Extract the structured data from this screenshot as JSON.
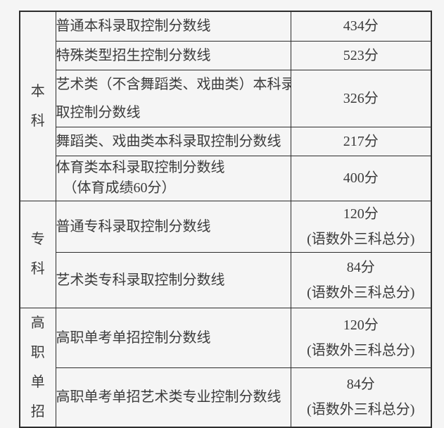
{
  "page": {
    "background": "#f5f5f5",
    "border_color": "#2d2d2d",
    "text_color": "#3b3b3b"
  },
  "table": {
    "description": "录取控制分数线表",
    "sections": [
      {
        "label": "本科",
        "chars": [
          "本",
          "科"
        ],
        "rows": [
          {
            "item": [
              "普通本科录取控制分数线"
            ],
            "value": [
              "434分"
            ]
          },
          {
            "item": [
              "特殊类型招生控制分数线"
            ],
            "value": [
              "523分"
            ]
          },
          {
            "item": [
              "艺术类（不含舞蹈类、戏曲类）本科录",
              "取控制分数线"
            ],
            "value": [
              "326分"
            ]
          },
          {
            "item": [
              "舞蹈类、戏曲类本科录取控制分数线"
            ],
            "value": [
              "217分"
            ]
          },
          {
            "item": [
              "体育类本科录取控制分数线",
              "（体育成绩60分）"
            ],
            "value": [
              "400分"
            ]
          }
        ]
      },
      {
        "label": "专科",
        "chars": [
          "专",
          "科"
        ],
        "rows": [
          {
            "item": [
              "普通专科录取控制分数线"
            ],
            "value": [
              "120分",
              "(语数外三科总分)"
            ]
          },
          {
            "item": [
              "艺术类专科录取控制分数线"
            ],
            "value": [
              "84分",
              "(语数外三科总分)"
            ]
          }
        ]
      },
      {
        "label": "高职单招",
        "chars": [
          "高",
          "职",
          "单",
          "招"
        ],
        "rows": [
          {
            "item": [
              "高职单考单招控制分数线"
            ],
            "value": [
              "120分",
              "(语数外三科总分)"
            ]
          },
          {
            "item": [
              "高职单考单招艺术类专业控制分数线"
            ],
            "value": [
              "84分",
              "(语数外三科总分)"
            ]
          }
        ]
      }
    ]
  }
}
